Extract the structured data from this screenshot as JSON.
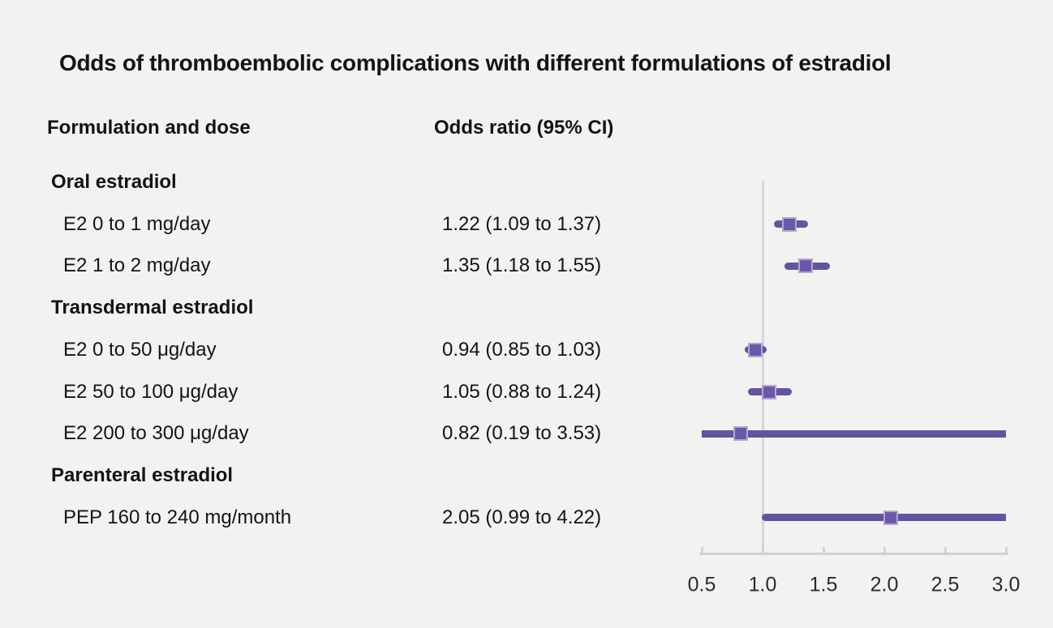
{
  "title": "Odds of thromboembolic complications with different formulations of estradiol",
  "columns": {
    "formulation": "Formulation and dose",
    "odds_ratio": "Odds ratio (95% CI)"
  },
  "colors": {
    "background": "#f2f2f0",
    "ci_line": "#64549c",
    "marker_fill": "#6a5aa5",
    "marker_border": "#b3a7d2",
    "axis": "#ccd1dc",
    "reference_line": "#d3d7e0",
    "text": "#141414"
  },
  "chart_data": {
    "type": "forest",
    "title": "Odds of thromboembolic complications with different formulations of estradiol",
    "x_axis": {
      "tick_labels": [
        "0.5",
        "1.0",
        "1.5",
        "2.0",
        "2.5",
        "3.0"
      ],
      "xlim": [
        0.5,
        3.0
      ],
      "reference_line": 1.0
    },
    "groups": [
      {
        "label": "Oral estradiol",
        "rows": [
          {
            "label": "E2 0 to 1 mg/day",
            "or_text": "1.22 (1.09 to 1.37)",
            "or": 1.22,
            "ci_low": 1.09,
            "ci_high": 1.37
          },
          {
            "label": "E2 1 to 2 mg/day",
            "or_text": "1.35 (1.18 to 1.55)",
            "or": 1.35,
            "ci_low": 1.18,
            "ci_high": 1.55
          }
        ]
      },
      {
        "label": "Transdermal estradiol",
        "rows": [
          {
            "label": "E2 0 to 50 μg/day",
            "or_text": "0.94 (0.85 to 1.03)",
            "or": 0.94,
            "ci_low": 0.85,
            "ci_high": 1.03
          },
          {
            "label": "E2 50 to 100 μg/day",
            "or_text": "1.05 (0.88 to 1.24)",
            "or": 1.05,
            "ci_low": 0.88,
            "ci_high": 1.24
          },
          {
            "label": "E2 200 to 300 μg/day",
            "or_text": "0.82 (0.19 to 3.53)",
            "or": 0.82,
            "ci_low": 0.19,
            "ci_high": 3.53
          }
        ]
      },
      {
        "label": "Parenteral estradiol",
        "rows": [
          {
            "label": "PEP 160 to 240 mg/month",
            "or_text": "2.05 (0.99 to 4.22)",
            "or": 2.05,
            "ci_low": 0.99,
            "ci_high": 4.22
          }
        ]
      }
    ]
  }
}
